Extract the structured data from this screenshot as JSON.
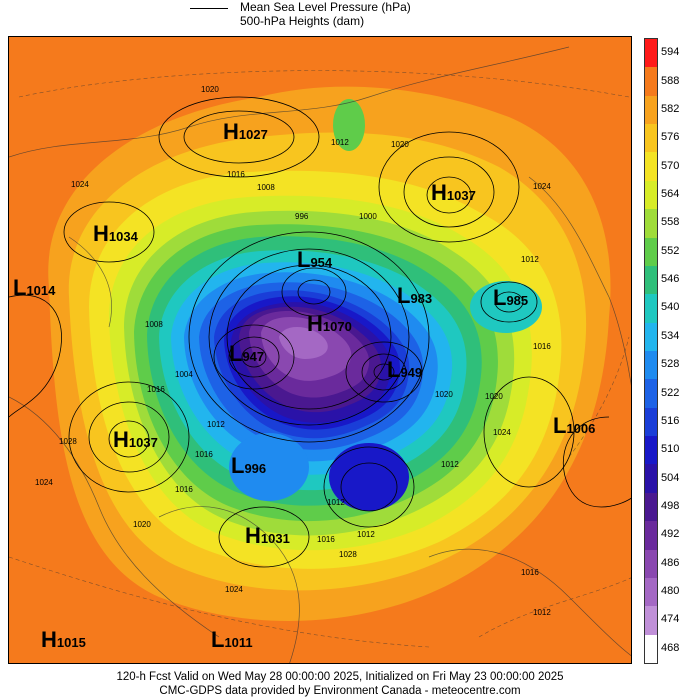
{
  "legend": {
    "mslp": "Mean Sea Level Pressure (hPa)",
    "heights": "500-hPa Heights (dam)"
  },
  "colorbar": [
    {
      "value": "594",
      "color": "#ff1a1a"
    },
    {
      "value": "588",
      "color": "#f57a1c"
    },
    {
      "value": "582",
      "color": "#f7a21e"
    },
    {
      "value": "576",
      "color": "#f8c51f"
    },
    {
      "value": "570",
      "color": "#f4e324"
    },
    {
      "value": "564",
      "color": "#d7ec28"
    },
    {
      "value": "558",
      "color": "#9fdc3a"
    },
    {
      "value": "552",
      "color": "#5fcc4a"
    },
    {
      "value": "546",
      "color": "#2fbf7a"
    },
    {
      "value": "540",
      "color": "#1fc8c0"
    },
    {
      "value": "534",
      "color": "#22b5ee"
    },
    {
      "value": "528",
      "color": "#1f8bf0"
    },
    {
      "value": "522",
      "color": "#1d62e6"
    },
    {
      "value": "516",
      "color": "#1a3ed8"
    },
    {
      "value": "510",
      "color": "#1818c8"
    },
    {
      "value": "504",
      "color": "#2a12a8"
    },
    {
      "value": "498",
      "color": "#4a1890"
    },
    {
      "value": "492",
      "color": "#6a2a9c"
    },
    {
      "value": "486",
      "color": "#8a48b0"
    },
    {
      "value": "480",
      "color": "#a468c4"
    },
    {
      "value": "474",
      "color": "#c090d8"
    },
    {
      "value": "468",
      "color": "#ffffff"
    }
  ],
  "centers": [
    {
      "type": "H",
      "value": "1027"
    },
    {
      "type": "H",
      "value": "1037"
    },
    {
      "type": "H",
      "value": "1034"
    },
    {
      "type": "L",
      "value": "1014"
    },
    {
      "type": "L",
      "value": "954"
    },
    {
      "type": "L",
      "value": "983"
    },
    {
      "type": "L",
      "value": "985"
    },
    {
      "type": "H",
      "value": "1070"
    },
    {
      "type": "L",
      "value": "947"
    },
    {
      "type": "L",
      "value": "949"
    },
    {
      "type": "H",
      "value": "1037"
    },
    {
      "type": "L",
      "value": "1006"
    },
    {
      "type": "L",
      "value": "996"
    },
    {
      "type": "H",
      "value": "1031"
    },
    {
      "type": "H",
      "value": "1015"
    },
    {
      "type": "L",
      "value": "1011"
    }
  ],
  "isobar_labels": [
    "1020",
    "1012",
    "1020",
    "1016",
    "1008",
    "1024",
    "996",
    "1000",
    "1012",
    "1024",
    "1016",
    "1008",
    "1012",
    "1016",
    "1020",
    "1016",
    "1012",
    "1012",
    "1016",
    "1024",
    "1028",
    "1024",
    "1004",
    "1016",
    "1012",
    "1020",
    "1012",
    "1016",
    "1028",
    "1024",
    "1020"
  ],
  "footer": {
    "line1": "120-h Fcst Valid on Wed May 28 00:00:00 2025, Initialized on Fri May 23 00:00:00 2025",
    "line2": "CMC-GDPS data provided by Environment Canada - meteocentre.com"
  }
}
